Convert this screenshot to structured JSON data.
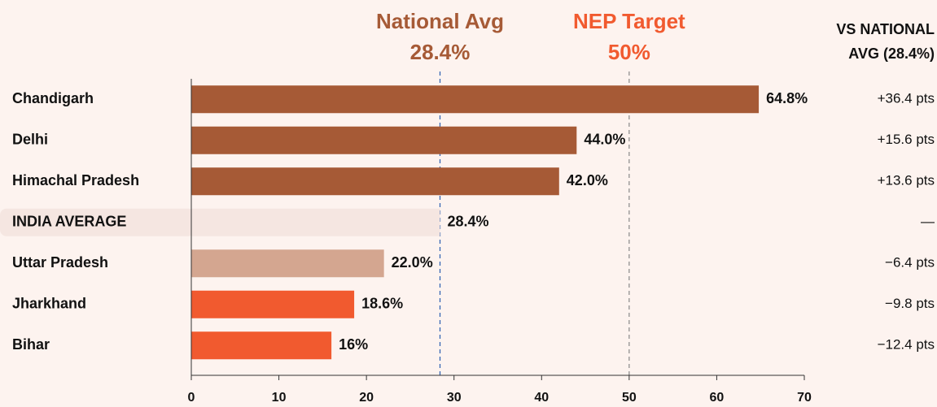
{
  "chart_data": {
    "type": "bar",
    "orientation": "horizontal",
    "categories": [
      "Chandigarh",
      "Delhi",
      "Himachal Pradesh",
      "INDIA AVERAGE",
      "Uttar Pradesh",
      "Jharkhand",
      "Bihar"
    ],
    "values": [
      64.8,
      44.0,
      42.0,
      28.4,
      22.0,
      18.6,
      16
    ],
    "value_labels": [
      "64.8%",
      "44.0%",
      "42.0%",
      "28.4%",
      "22.0%",
      "18.6%",
      "16%"
    ],
    "colors": [
      "#a65a36",
      "#a65a36",
      "#a65a36",
      "#f5e6e1",
      "#d4a690",
      "#f15a2f",
      "#f15a2f"
    ],
    "highlight": [
      false,
      false,
      false,
      true,
      false,
      false,
      false
    ],
    "xlim": [
      0,
      70
    ],
    "xticks": [
      0,
      10,
      20,
      30,
      40,
      50,
      60,
      70
    ],
    "reference_lines": [
      {
        "label": "National Avg",
        "value": 28.4,
        "value_label": "28.4%",
        "color": "#a65a36",
        "line_color": "#2a5db0"
      },
      {
        "label": "NEP Target",
        "value": 50,
        "value_label": "50%",
        "color": "#f15a2f",
        "line_color": "#888888"
      }
    ],
    "comparison_header": [
      "VS NATIONAL",
      "AVG (28.4%)"
    ],
    "comparison_labels": [
      "+36.4 pts",
      "+15.6 pts",
      "+13.6 pts",
      "—",
      "−6.4 pts",
      "−9.8 pts",
      "−12.4 pts"
    ]
  }
}
